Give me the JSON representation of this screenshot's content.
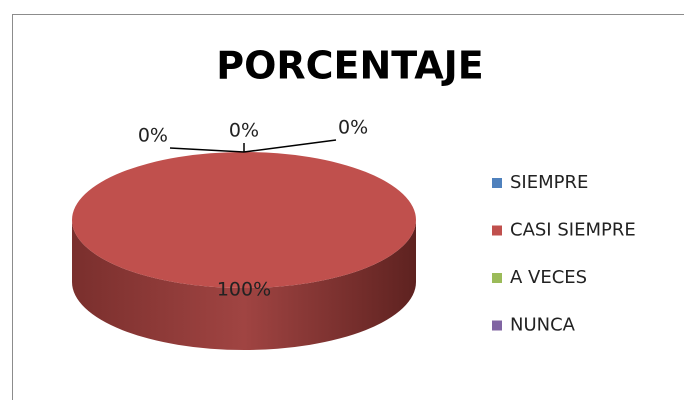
{
  "chart_data": {
    "type": "pie",
    "title": "PORCENTAJE",
    "categories": [
      "SIEMPRE",
      "CASI SIEMPRE",
      "A VECES",
      "NUNCA"
    ],
    "values": [
      0,
      100,
      0,
      0
    ],
    "value_labels": [
      "0%",
      "100%",
      "0%",
      "0%"
    ],
    "colors": [
      "#4f81bd",
      "#c0504d",
      "#9bbb59",
      "#8064a2"
    ],
    "legend": "right"
  }
}
